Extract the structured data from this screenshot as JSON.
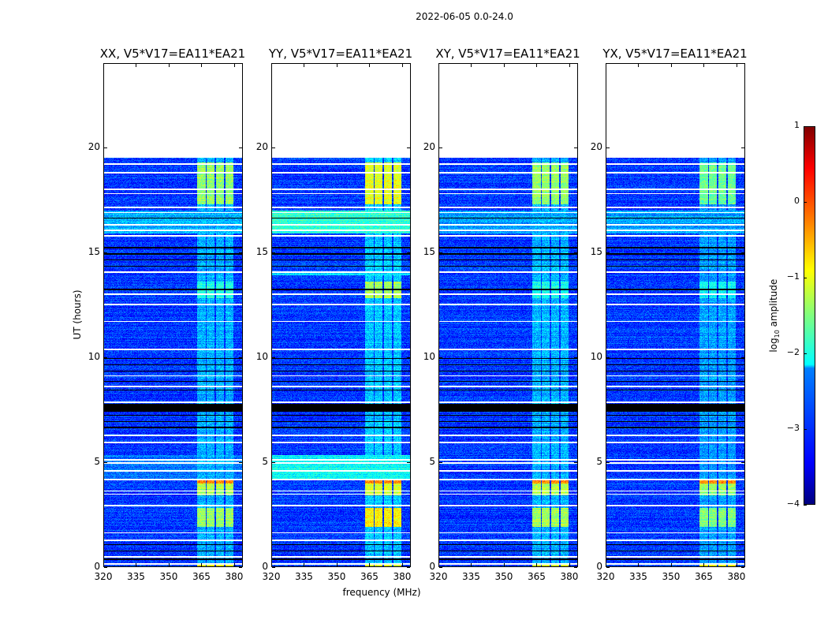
{
  "chart_data": {
    "type": "heatmap",
    "title": "2022-06-05 0.0-24.0",
    "xlabel": "frequency (MHz)",
    "ylabel": "UT (hours)",
    "xlim": [
      320,
      384
    ],
    "ylim": [
      0,
      24
    ],
    "xticks": [
      "320",
      "335",
      "350",
      "365",
      "380"
    ],
    "yticks": [
      "0",
      "5",
      "10",
      "15",
      "20"
    ],
    "colormap": "jet",
    "colorbar": {
      "label_main": "log",
      "label_sub": "10",
      "label_rest": " amplitude",
      "range": [
        -4,
        1
      ],
      "ticks": [
        "−4",
        "−3",
        "−2",
        "−1",
        "0",
        "1"
      ]
    },
    "data_end_hour": 19.6,
    "background_level": -3.1,
    "flagged_hours": [
      0.1,
      0.45,
      1.25,
      1.6,
      2.9,
      3.45,
      3.6,
      4.15,
      4.55,
      4.95,
      5.1,
      5.9,
      6.25,
      7.85,
      8.6,
      9.1,
      10.35,
      11.7,
      12.5,
      13.0,
      14.05,
      15.8,
      16.05,
      16.3,
      16.9,
      17.15,
      17.8,
      18.0,
      18.8,
      19.2,
      19.55
    ],
    "nodata_hours": [
      [
        7.4,
        7.75
      ],
      [
        0.3,
        0.36
      ],
      [
        0.7,
        0.75
      ],
      [
        1.0,
        1.05
      ],
      [
        6.6,
        6.65
      ],
      [
        6.9,
        6.95
      ],
      [
        7.2,
        7.25
      ],
      [
        8.4,
        8.45
      ],
      [
        8.8,
        8.85
      ],
      [
        9.3,
        9.35
      ],
      [
        9.6,
        9.65
      ],
      [
        9.9,
        9.95
      ],
      [
        13.2,
        13.25
      ],
      [
        14.3,
        14.35
      ],
      [
        14.6,
        14.65
      ],
      [
        14.9,
        14.95
      ],
      [
        15.2,
        15.25
      ],
      [
        16.6,
        16.65
      ]
    ],
    "rfi_channels": [
      [
        363,
        367
      ],
      [
        367.7,
        371.2
      ],
      [
        371.9,
        375.6
      ],
      [
        376.3,
        380
      ]
    ],
    "panels": [
      {
        "title": "XX, V5*V17=EA11*EA21",
        "bands": [
          {
            "t": [
              4.2,
              5.3
            ],
            "level": -2.8
          },
          {
            "t": [
              15.9,
              17.0
            ],
            "level": -2.5
          }
        ],
        "rfi_base": -2.5,
        "rfi": [
          {
            "t": [
              0,
              0.15
            ],
            "level": -1.0
          },
          {
            "t": [
              1.9,
              2.8
            ],
            "level": -1.4
          },
          {
            "t": [
              3.4,
              3.95
            ],
            "level": -1.3
          },
          {
            "t": [
              3.95,
              4.1
            ],
            "level": -0.3
          },
          {
            "t": [
              17.3,
              19.3
            ],
            "level": -1.4
          },
          {
            "t": [
              12.8,
              13.6
            ],
            "level": -2.0
          }
        ]
      },
      {
        "title": "YY, V5*V17=EA11*EA21",
        "bands": [
          {
            "t": [
              4.2,
              5.3
            ],
            "level": -2.1
          },
          {
            "t": [
              15.9,
              17.0
            ],
            "level": -1.9
          },
          {
            "t": [
              13.9,
              14.1
            ],
            "level": -2.2
          }
        ],
        "rfi_base": -2.4,
        "rfi": [
          {
            "t": [
              0,
              0.15
            ],
            "level": -1.0
          },
          {
            "t": [
              1.9,
              2.8
            ],
            "level": -0.8
          },
          {
            "t": [
              3.4,
              3.95
            ],
            "level": -1.1
          },
          {
            "t": [
              3.95,
              4.1
            ],
            "level": -0.3
          },
          {
            "t": [
              17.3,
              19.3
            ],
            "level": -1.0
          },
          {
            "t": [
              12.8,
              13.6
            ],
            "level": -1.3
          }
        ]
      },
      {
        "title": "XY, V5*V17=EA11*EA21",
        "bands": [
          {
            "t": [
              15.9,
              17.0
            ],
            "level": -2.6
          }
        ],
        "rfi_base": -2.5,
        "rfi": [
          {
            "t": [
              0,
              0.15
            ],
            "level": -1.0
          },
          {
            "t": [
              1.9,
              2.8
            ],
            "level": -1.3
          },
          {
            "t": [
              3.4,
              3.95
            ],
            "level": -1.2
          },
          {
            "t": [
              3.95,
              4.1
            ],
            "level": -0.3
          },
          {
            "t": [
              17.3,
              19.3
            ],
            "level": -1.4
          },
          {
            "t": [
              12.8,
              13.6
            ],
            "level": -2.0
          }
        ]
      },
      {
        "title": "YX, V5*V17=EA11*EA21",
        "bands": [
          {
            "t": [
              15.9,
              17.0
            ],
            "level": -2.6
          }
        ],
        "rfi_base": -2.6,
        "rfi": [
          {
            "t": [
              0,
              0.15
            ],
            "level": -1.0
          },
          {
            "t": [
              1.9,
              2.8
            ],
            "level": -1.5
          },
          {
            "t": [
              3.4,
              3.95
            ],
            "level": -1.4
          },
          {
            "t": [
              3.95,
              4.1
            ],
            "level": -0.3
          },
          {
            "t": [
              17.3,
              19.3
            ],
            "level": -1.6
          },
          {
            "t": [
              12.8,
              13.6
            ],
            "level": -2.1
          }
        ]
      }
    ]
  }
}
